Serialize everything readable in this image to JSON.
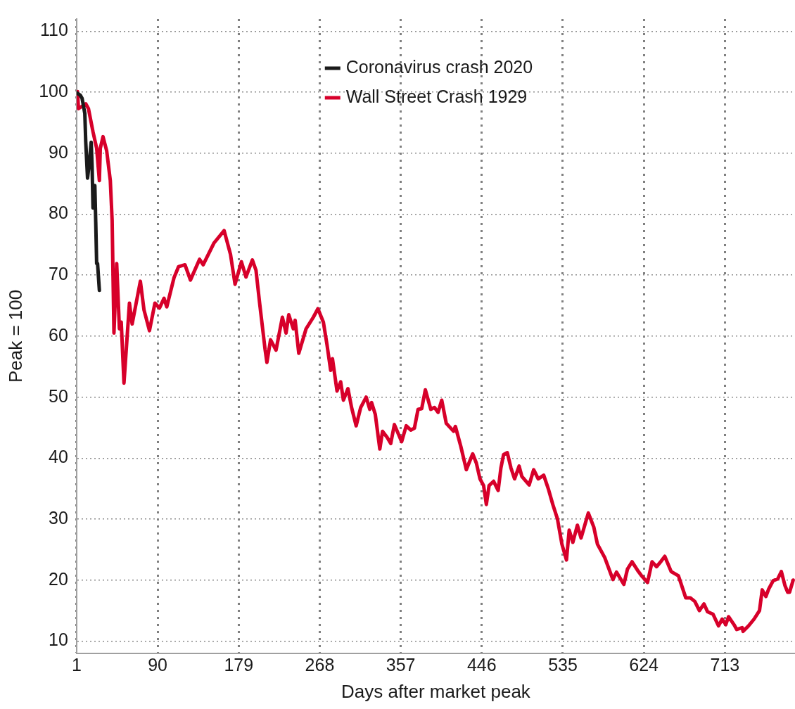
{
  "chart_data": {
    "type": "line",
    "xlabel": "Days after market peak",
    "ylabel": "Peak = 100",
    "xlim": [
      1,
      790
    ],
    "xticks": [
      1,
      90,
      179,
      268,
      357,
      446,
      535,
      624,
      713
    ],
    "ylim": [
      8,
      112
    ],
    "yticks": [
      10,
      20,
      30,
      40,
      50,
      60,
      70,
      80,
      90,
      100,
      110
    ],
    "grid": true,
    "legend": "top",
    "line_style": "solid",
    "series": [
      {
        "name": "Coronavirus crash 2020",
        "color": "#1a1a1a",
        "x": [
          1,
          5,
          7,
          10,
          11,
          13,
          15,
          17,
          18,
          19,
          21,
          22,
          23,
          24,
          26
        ],
        "values": [
          99.9,
          99.5,
          99,
          96.5,
          91.9,
          85.9,
          88.5,
          91.8,
          87.8,
          81,
          84.7,
          78.7,
          71.9,
          71.9,
          67.5
        ]
      },
      {
        "name": "Wall Street Crash 1929",
        "color": "#d7002a",
        "x": [
          2,
          3,
          11,
          14,
          19,
          23,
          26,
          27,
          30,
          34,
          38,
          40,
          42,
          45,
          48,
          50,
          53,
          59,
          62,
          71,
          75,
          81,
          87,
          92,
          97,
          100,
          108,
          113,
          120,
          126,
          136,
          140,
          152,
          163,
          170,
          175,
          182,
          187,
          194,
          198,
          202,
          208,
          210,
          214,
          220,
          227,
          231,
          234,
          239,
          241,
          245,
          253,
          261,
          266,
          272,
          276,
          280,
          282,
          287,
          291,
          294,
          299,
          303,
          308,
          313,
          319,
          323,
          325,
          329,
          334,
          337,
          342,
          346,
          350,
          358,
          363,
          368,
          372,
          376,
          380,
          384,
          390,
          394,
          398,
          402,
          407,
          415,
          417,
          423,
          429,
          436,
          440,
          444,
          448,
          451,
          454,
          459,
          464,
          467,
          470,
          474,
          478,
          482,
          487,
          490,
          498,
          503,
          508,
          514,
          519,
          524,
          529,
          534,
          539,
          542,
          546,
          551,
          555,
          563,
          569,
          573,
          581,
          590,
          594,
          602,
          606,
          611,
          618,
          621,
          628,
          633,
          638,
          643,
          647,
          654,
          662,
          670,
          675,
          680,
          685,
          690,
          694,
          700,
          706,
          710,
          714,
          717,
          723,
          726,
          732,
          733,
          739,
          745,
          751,
          754,
          758,
          761,
          766,
          771,
          775,
          779,
          782,
          784,
          788
        ],
        "values": [
          100.1,
          97.3,
          98.1,
          97.3,
          93.5,
          90.8,
          85.5,
          90.8,
          92.7,
          90.4,
          85.5,
          79,
          60.5,
          71.9,
          61.2,
          62.3,
          52.3,
          65.4,
          62,
          69,
          64.3,
          60.9,
          65.4,
          64.6,
          66.2,
          64.8,
          69.6,
          71.4,
          71.7,
          69.2,
          72.6,
          71.7,
          75.3,
          77.3,
          73.4,
          68.5,
          72.2,
          69.7,
          72.5,
          70.8,
          65.4,
          57.8,
          55.7,
          59.4,
          57.7,
          63.1,
          60.5,
          63.5,
          61.2,
          62.6,
          57.2,
          61.2,
          63.1,
          64.5,
          62.3,
          58.6,
          54.4,
          56.3,
          51,
          52.5,
          49.5,
          51.4,
          48.3,
          45.3,
          48.3,
          50,
          48,
          49.1,
          47.2,
          41.5,
          44.4,
          43.4,
          42.4,
          45.5,
          42.7,
          45.3,
          44.6,
          44.9,
          48,
          48.1,
          51.2,
          48,
          48.3,
          47.5,
          49.5,
          45.7,
          44.4,
          45.2,
          41.9,
          38.1,
          40.7,
          39.2,
          36.6,
          35.5,
          32.4,
          35.5,
          36.2,
          34.7,
          38.4,
          40.6,
          40.9,
          38.4,
          36.6,
          38.7,
          37,
          35.6,
          38.1,
          36.6,
          37.2,
          35,
          32.4,
          30.1,
          25.9,
          23.3,
          28.2,
          26.2,
          29,
          26.9,
          31,
          28.7,
          25.9,
          23.7,
          20.1,
          21.3,
          19.3,
          21.8,
          23,
          21.4,
          20.8,
          19.6,
          23,
          22.2,
          23.1,
          23.9,
          21.4,
          20.7,
          17.1,
          17.1,
          16.5,
          15,
          16.1,
          14.8,
          14.4,
          12.5,
          13.6,
          12.7,
          14,
          12.7,
          11.9,
          12.2,
          11.6,
          12.5,
          13.6,
          15,
          18.4,
          17.3,
          18.5,
          19.9,
          20.2,
          21.4,
          19.1,
          18,
          18,
          20
        ]
      }
    ]
  }
}
